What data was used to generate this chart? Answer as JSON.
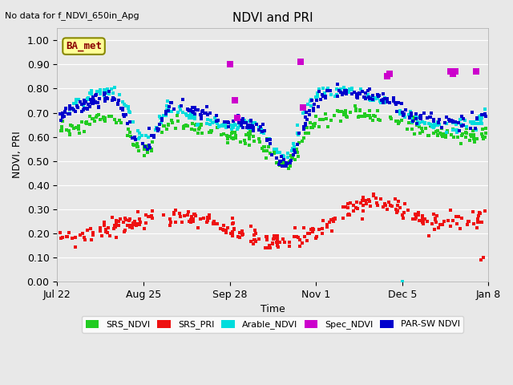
{
  "title": "NDVI and PRI",
  "top_left_text": "No data for f_NDVI_650in_Apg",
  "box_label": "BA_met",
  "ylabel": "NDVI, PRI",
  "xlabel": "Time",
  "ylim": [
    0.0,
    1.05
  ],
  "xlim_days": [
    0,
    170
  ],
  "background_color": "#e8e8e8",
  "colors": {
    "SRS_NDVI": "#22cc22",
    "SRS_PRI": "#ee1111",
    "Arable_NDVI": "#00dddd",
    "Spec_NDVI": "#cc00cc",
    "PAR_SW_NDVI": "#0000cc"
  },
  "xtick_labels": [
    "Jul 22",
    "Aug 25",
    "Sep 28",
    "Nov 1",
    "Dec 5",
    "Jan 8"
  ],
  "xtick_days": [
    0,
    34,
    68,
    102,
    136,
    170
  ]
}
